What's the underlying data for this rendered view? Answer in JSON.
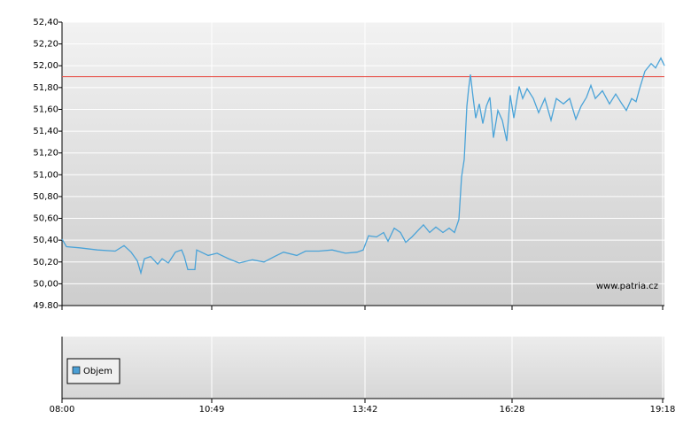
{
  "chart_data": [
    {
      "type": "line",
      "x": [
        480,
        485,
        500,
        520,
        540,
        550,
        558,
        565,
        569,
        573,
        580,
        588,
        593,
        600,
        608,
        615,
        618,
        622,
        630,
        632,
        645,
        655,
        668,
        680,
        695,
        708,
        720,
        730,
        745,
        755,
        770,
        785,
        800,
        813,
        820,
        826,
        835,
        843,
        848,
        855,
        862,
        868,
        875,
        882,
        888,
        895,
        902,
        910,
        917,
        923,
        928,
        931,
        934,
        937,
        939,
        941,
        944,
        947,
        951,
        955,
        959,
        963,
        967,
        972,
        977,
        982,
        986,
        990,
        996,
        1000,
        1005,
        1012,
        1018,
        1025,
        1032,
        1038,
        1046,
        1053,
        1060,
        1066,
        1072,
        1077,
        1082,
        1090,
        1098,
        1105,
        1112,
        1117,
        1123,
        1128,
        1132,
        1138,
        1145,
        1150,
        1156,
        1160
      ],
      "values": [
        50.41,
        50.34,
        50.33,
        50.31,
        50.3,
        50.35,
        50.29,
        50.21,
        50.1,
        50.23,
        50.25,
        50.18,
        50.23,
        50.19,
        50.29,
        50.31,
        50.25,
        50.13,
        50.13,
        50.31,
        50.26,
        50.28,
        50.23,
        50.19,
        50.22,
        50.2,
        50.25,
        50.29,
        50.26,
        50.3,
        50.3,
        50.31,
        50.28,
        50.29,
        50.31,
        50.44,
        50.43,
        50.47,
        50.39,
        50.51,
        50.47,
        50.38,
        50.43,
        50.49,
        50.54,
        50.47,
        50.52,
        50.47,
        50.51,
        50.47,
        50.59,
        50.98,
        51.14,
        51.63,
        51.79,
        51.92,
        51.71,
        51.52,
        51.65,
        51.47,
        51.63,
        51.71,
        51.34,
        51.59,
        51.5,
        51.31,
        51.73,
        51.52,
        51.81,
        51.7,
        51.79,
        51.7,
        51.57,
        51.7,
        51.5,
        51.7,
        51.65,
        51.7,
        51.51,
        51.63,
        51.71,
        51.82,
        51.7,
        51.77,
        51.65,
        51.74,
        51.65,
        51.59,
        51.7,
        51.67,
        51.79,
        51.95,
        52.02,
        51.98,
        52.07,
        52.0
      ],
      "color": "#4aa3d8",
      "xlim": [
        480,
        1160
      ],
      "xticks": [
        {
          "value": 480,
          "label": "08:00"
        },
        {
          "value": 649,
          "label": "10:49"
        },
        {
          "value": 822,
          "label": "13:42"
        },
        {
          "value": 988,
          "label": "16:28"
        },
        {
          "value": 1158,
          "label": "19:18"
        }
      ],
      "ylim": [
        49.8,
        52.4
      ],
      "yticks": [
        {
          "value": 52.4,
          "label": "52,40"
        },
        {
          "value": 52.2,
          "label": "52,20"
        },
        {
          "value": 52.0,
          "label": "52,00"
        },
        {
          "value": 51.8,
          "label": "51,80"
        },
        {
          "value": 51.6,
          "label": "51,60"
        },
        {
          "value": 51.4,
          "label": "51,40"
        },
        {
          "value": 51.2,
          "label": "51,20"
        },
        {
          "value": 51.0,
          "label": "51,00"
        },
        {
          "value": 50.8,
          "label": "50,80"
        },
        {
          "value": 50.6,
          "label": "50,60"
        },
        {
          "value": 50.4,
          "label": "50,40"
        },
        {
          "value": 50.2,
          "label": "50,20"
        },
        {
          "value": 50.0,
          "label": "50,00"
        },
        {
          "value": 49.8,
          "label": "49.80"
        }
      ],
      "grid": true,
      "reference_line": {
        "value": 51.9,
        "color": "#e8524a"
      },
      "annotation": "www.patria.cz"
    },
    {
      "type": "bar",
      "series": [
        {
          "name": "Objem",
          "color": "#4a9fd5"
        }
      ],
      "legend": "upper-left",
      "grid": true
    }
  ]
}
